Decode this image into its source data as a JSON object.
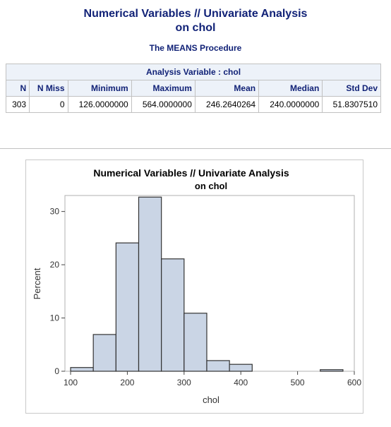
{
  "report": {
    "title_line1": "Numerical Variables // Univariate Analysis",
    "title_line2": "on chol",
    "procedure": "The MEANS Procedure",
    "analysis_variable": "Analysis Variable : chol"
  },
  "table": {
    "headers": [
      "N",
      "N Miss",
      "Minimum",
      "Maximum",
      "Mean",
      "Median",
      "Std Dev"
    ],
    "row": [
      "303",
      "0",
      "126.0000000",
      "564.0000000",
      "246.2640264",
      "240.0000000",
      "51.8307510"
    ]
  },
  "chart_data": {
    "type": "bar",
    "title": "Numerical Variables // Univariate Analysis",
    "subtitle": "on chol",
    "xlabel": "chol",
    "ylabel": "Percent",
    "bin_width": 40,
    "bins": [
      {
        "x0": 100,
        "x1": 140,
        "value": 0.7
      },
      {
        "x0": 140,
        "x1": 180,
        "value": 6.9
      },
      {
        "x0": 180,
        "x1": 220,
        "value": 24.1
      },
      {
        "x0": 220,
        "x1": 260,
        "value": 32.7
      },
      {
        "x0": 260,
        "x1": 300,
        "value": 21.1
      },
      {
        "x0": 300,
        "x1": 340,
        "value": 10.9
      },
      {
        "x0": 340,
        "x1": 380,
        "value": 2.0
      },
      {
        "x0": 380,
        "x1": 420,
        "value": 1.3
      },
      {
        "x0": 540,
        "x1": 580,
        "value": 0.3
      }
    ],
    "xlim": [
      90,
      600
    ],
    "ylim": [
      0,
      33
    ],
    "xticks": [
      100,
      200,
      300,
      400,
      500,
      600
    ],
    "yticks": [
      0,
      10,
      20,
      30
    ],
    "bar_fill": "#cad5e5",
    "bar_stroke": "#333333",
    "grid": false
  }
}
